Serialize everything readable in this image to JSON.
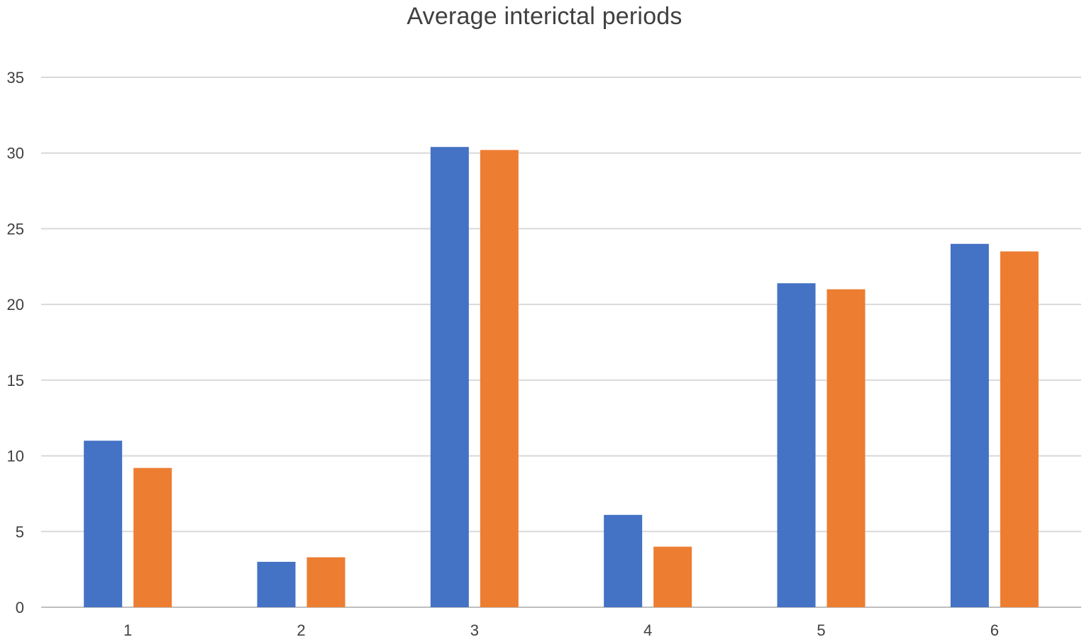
{
  "chart_data": {
    "type": "bar",
    "title": "Average interictal periods",
    "categories": [
      "1",
      "2",
      "3",
      "4",
      "5",
      "6"
    ],
    "series": [
      {
        "name": "Series 1",
        "color": "#4472c4",
        "values": [
          11.0,
          3.0,
          30.4,
          6.1,
          21.4,
          24.0
        ]
      },
      {
        "name": "Series 2",
        "color": "#ed7d31",
        "values": [
          9.2,
          3.3,
          30.2,
          4.0,
          21.0,
          23.5
        ]
      }
    ],
    "xlabel": "",
    "ylabel": "",
    "ylim": [
      0,
      35
    ],
    "yticks": [
      0,
      5,
      10,
      15,
      20,
      25,
      30,
      35
    ],
    "grid": true,
    "legend": "none"
  }
}
